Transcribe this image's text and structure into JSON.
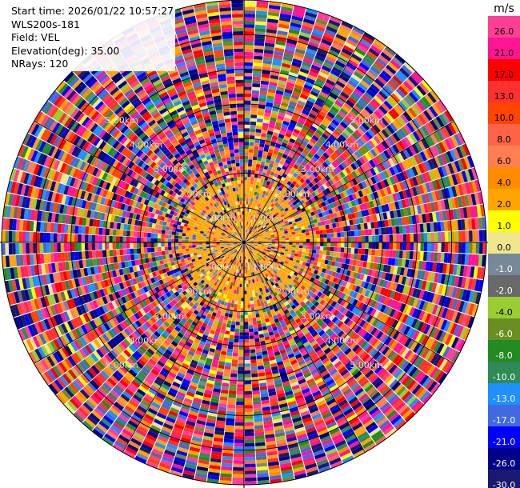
{
  "header": {
    "start_time": "Start time: 2026/01/22 10:57:27",
    "site": "WLS200s-181",
    "field": "Field: VEL",
    "elevation": "Elevation(deg): 35.00",
    "nrays": "NRays: 120"
  },
  "chart_data": {
    "type": "polar-ppi",
    "field": "VEL",
    "elevation_deg": 35.0,
    "n_rays": 120,
    "range_rings_km": [
      1.0,
      2.0,
      3.0,
      4.0,
      5.0,
      6.0
    ],
    "max_range_km": 7.0,
    "ring_labels": [
      "1.00km",
      "2.00km",
      "3.00km",
      "4.00km",
      "5.00km"
    ],
    "ring_label_diagonals": [
      "upper-left",
      "upper-right",
      "lower-left",
      "lower-right"
    ],
    "inner_region": {
      "dominant_velocity_ms": 2.5,
      "approx_radius_km": 1.8
    },
    "outer_region": "noisy velocity values spanning full colour scale",
    "colorbar": {
      "unit": "m/s",
      "tick_labels": [
        "26.0",
        "21.0",
        "17.0",
        "13.0",
        "10.0",
        "8.0",
        "6.0",
        "4.0",
        "2.0",
        "1.0",
        "0.0",
        "-1.0",
        "-2.0",
        "-4.0",
        "-6.0",
        "-8.0",
        "-10.0",
        "-13.0",
        "-17.0",
        "-21.0",
        "-26.0",
        "-30.0"
      ],
      "colors": [
        "#ff3e96",
        "#ff1493",
        "#ff0000",
        "#ff3030",
        "#ff4500",
        "#ff6347",
        "#ff7f50",
        "#ff8c00",
        "#ffa500",
        "#ffff00",
        "#f0e68c",
        "#778899",
        "#696969",
        "#9acd32",
        "#6b8e23",
        "#228b22",
        "#2e8b57",
        "#1e90ff",
        "#4169e1",
        "#0000ff",
        "#00008b",
        "#191970"
      ]
    }
  }
}
